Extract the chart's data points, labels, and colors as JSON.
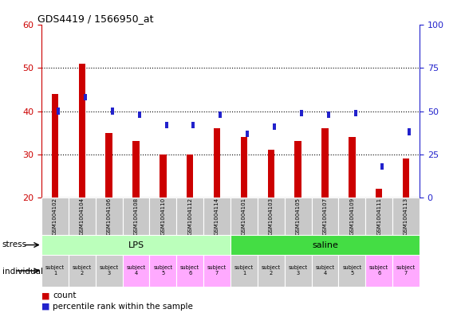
{
  "title": "GDS4419 / 1566950_at",
  "samples": [
    "GSM1004102",
    "GSM1004104",
    "GSM1004106",
    "GSM1004108",
    "GSM1004110",
    "GSM1004112",
    "GSM1004114",
    "GSM1004101",
    "GSM1004103",
    "GSM1004105",
    "GSM1004107",
    "GSM1004109",
    "GSM1004111",
    "GSM1004113"
  ],
  "counts": [
    44,
    51,
    35,
    33,
    30,
    30,
    36,
    34,
    31,
    33,
    36,
    34,
    22,
    29
  ],
  "percentiles_right": [
    50,
    58,
    50,
    48,
    42,
    42,
    48,
    37,
    41,
    49,
    48,
    49,
    18,
    38
  ],
  "ylim_left": [
    20,
    60
  ],
  "ylim_right": [
    0,
    100
  ],
  "yticks_left": [
    20,
    30,
    40,
    50,
    60
  ],
  "yticks_right": [
    0,
    25,
    50,
    75,
    100
  ],
  "bar_color": "#cc0000",
  "dot_color": "#2222cc",
  "stress_groups": [
    {
      "label": "LPS",
      "start": 0,
      "end": 7,
      "color": "#bbffbb"
    },
    {
      "label": "saline",
      "start": 7,
      "end": 14,
      "color": "#44dd44"
    }
  ],
  "individual_labels": [
    "subject\n1",
    "subject\n2",
    "subject\n3",
    "subject\n4",
    "subject\n5",
    "subject\n6",
    "subject\n7",
    "subject\n1",
    "subject\n2",
    "subject\n3",
    "subject\n4",
    "subject\n5",
    "subject\n6",
    "subject\n7"
  ],
  "individual_colors": [
    "#cccccc",
    "#cccccc",
    "#cccccc",
    "#ffaaff",
    "#ffaaff",
    "#ffaaff",
    "#ffaaff",
    "#cccccc",
    "#cccccc",
    "#cccccc",
    "#cccccc",
    "#cccccc",
    "#ffaaff",
    "#ffaaff"
  ],
  "legend_count_color": "#cc0000",
  "legend_dot_color": "#2222cc",
  "axis_left_color": "#cc0000",
  "axis_right_color": "#2222cc",
  "bar_width": 0.25,
  "dot_size": 0.12
}
